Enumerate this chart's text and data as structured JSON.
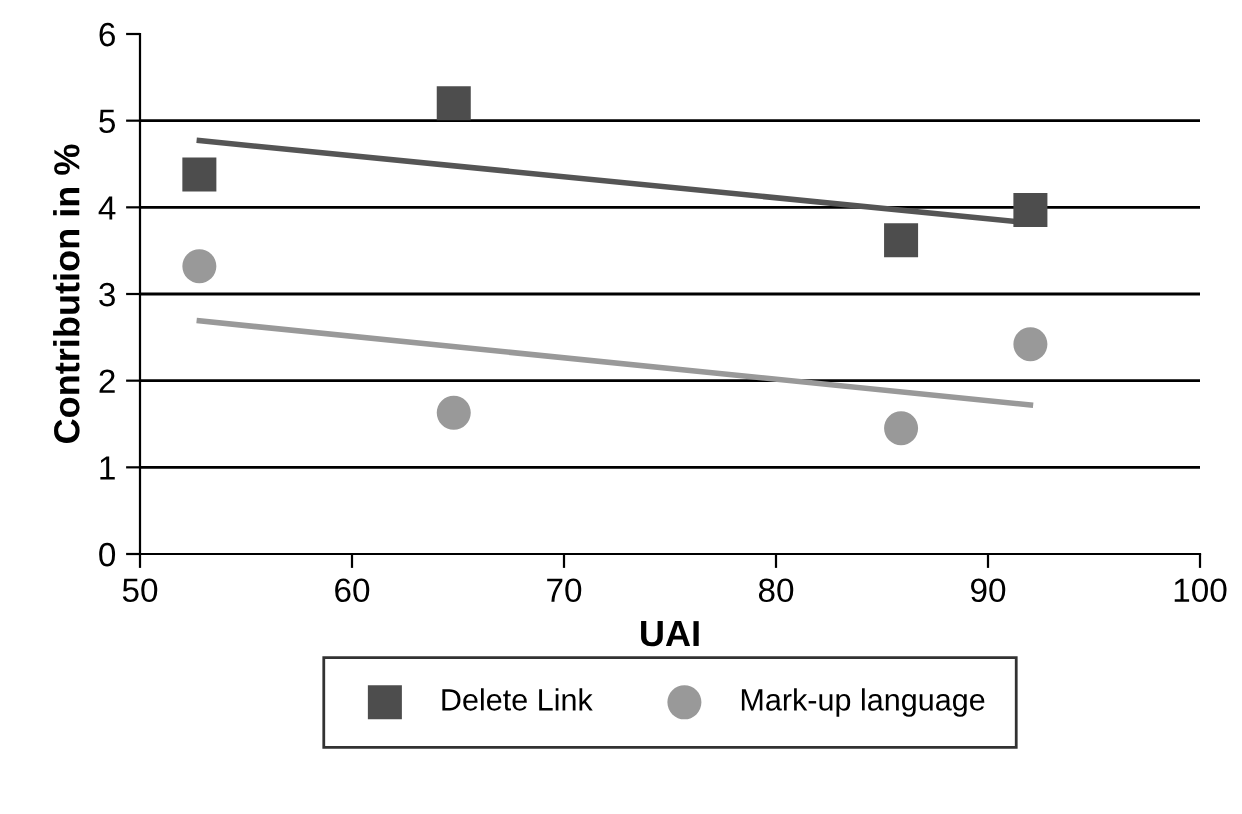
{
  "chart_data": {
    "type": "scatter",
    "xlabel": "UAI",
    "ylabel": "Contribution in %",
    "xlim": [
      50,
      100
    ],
    "xticks": [
      50,
      60,
      70,
      80,
      90,
      100
    ],
    "ylim": [
      0,
      6
    ],
    "yticks": [
      0,
      1,
      2,
      3,
      4,
      5,
      6
    ],
    "grid": "y",
    "legend": "bottom",
    "series": [
      {
        "name": "Delete Link",
        "color": "#4d4d4d",
        "marker": "square",
        "x": [
          52.8,
          64.8,
          85.9,
          92.0
        ],
        "values": [
          4.38,
          5.2,
          3.62,
          3.97
        ]
      },
      {
        "name": "Mark-up language",
        "color": "#999999",
        "marker": "circle",
        "x": [
          52.8,
          64.8,
          85.9,
          92.0
        ],
        "values": [
          3.32,
          1.63,
          1.45,
          2.42
        ]
      },
      {
        "type": "line",
        "color": "#555555",
        "x": [
          52.8,
          92.0
        ],
        "values": [
          4.77,
          3.82
        ]
      },
      {
        "type": "line",
        "color": "#999999",
        "x": [
          52.8,
          92.0
        ],
        "values": [
          2.69,
          1.72
        ]
      }
    ]
  }
}
